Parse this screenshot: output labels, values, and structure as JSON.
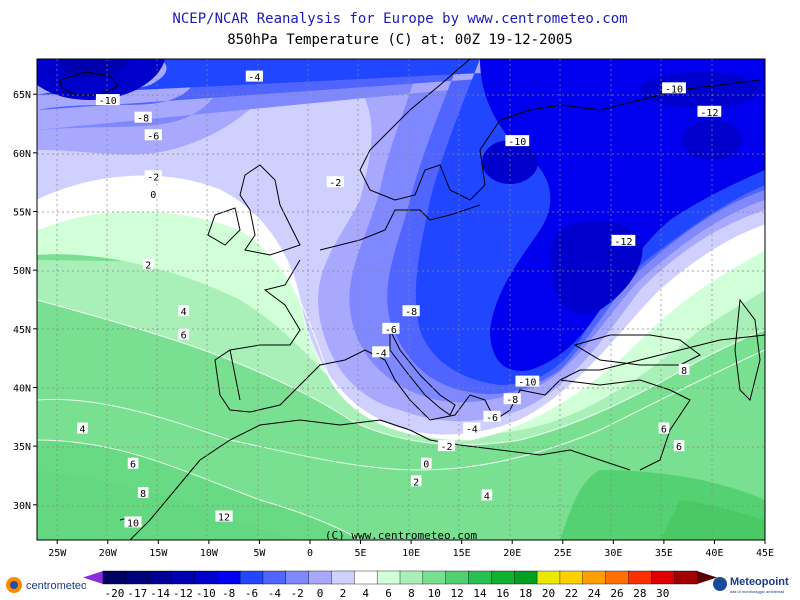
{
  "title": "NCEP/NCAR Reanalysis for Europe by www.centrometeo.com",
  "subtitle": "850hPa Temperature (C) at: 00Z 19-12-2005",
  "copyright": "(C) www.centrometeo.com",
  "lon_labels": [
    "25W",
    "20W",
    "15W",
    "10W",
    "5W",
    "0",
    "5E",
    "10E",
    "15E",
    "20E",
    "25E",
    "30E",
    "35E",
    "40E",
    "45E"
  ],
  "lat_labels": [
    "65N",
    "60N",
    "55N",
    "50N",
    "45N",
    "40N",
    "35N",
    "30N"
  ],
  "colorbar": {
    "labels": [
      "-20",
      "-17",
      "-14",
      "-12",
      "-10",
      "-8",
      "-6",
      "-4",
      "-2",
      "0",
      "2",
      "4",
      "6",
      "8",
      "10",
      "12",
      "14",
      "16",
      "18",
      "20",
      "22",
      "24",
      "26",
      "28",
      "30"
    ],
    "colors": [
      "#000060",
      "#00007a",
      "#000095",
      "#0000b0",
      "#0000cc",
      "#0000ee",
      "#2046ff",
      "#5064ff",
      "#8088ff",
      "#a8a8ff",
      "#d0d0ff",
      "#ffffff",
      "#d0ffd8",
      "#a8f0b8",
      "#78e090",
      "#50d070",
      "#28c050",
      "#10b030",
      "#00a020",
      "#e8e800",
      "#ffd000",
      "#ffa000",
      "#ff7000",
      "#ff3000",
      "#e00000",
      "#a00000"
    ]
  },
  "contour_labels": [
    {
      "text": "-4",
      "lon": -5.5,
      "lat": 66.5
    },
    {
      "text": "-10",
      "lon": -20,
      "lat": 64.5
    },
    {
      "text": "-8",
      "lon": -16.5,
      "lat": 63
    },
    {
      "text": "-6",
      "lon": -15.5,
      "lat": 61.5
    },
    {
      "text": "-2",
      "lon": -15.5,
      "lat": 58
    },
    {
      "text": "0",
      "lon": -15.5,
      "lat": 56.5
    },
    {
      "text": "-2",
      "lon": 2.5,
      "lat": 57.5
    },
    {
      "text": "2",
      "lon": -16,
      "lat": 50.5
    },
    {
      "text": "4",
      "lon": -12.5,
      "lat": 46.5
    },
    {
      "text": "6",
      "lon": -12.5,
      "lat": 44.5
    },
    {
      "text": "4",
      "lon": -22.5,
      "lat": 36.5
    },
    {
      "text": "6",
      "lon": -17.5,
      "lat": 33.5
    },
    {
      "text": "8",
      "lon": -16.5,
      "lat": 31
    },
    {
      "text": "10",
      "lon": -17.5,
      "lat": 28.5
    },
    {
      "text": "12",
      "lon": -8.5,
      "lat": 29
    },
    {
      "text": "-10",
      "lon": 20.5,
      "lat": 61
    },
    {
      "text": "-10",
      "lon": 36,
      "lat": 65.5
    },
    {
      "text": "-12",
      "lon": 39.5,
      "lat": 63.5
    },
    {
      "text": "-12",
      "lon": 31,
      "lat": 52.5
    },
    {
      "text": "-8",
      "lon": 10,
      "lat": 46.5
    },
    {
      "text": "-6",
      "lon": 8,
      "lat": 45
    },
    {
      "text": "-4",
      "lon": 7,
      "lat": 43
    },
    {
      "text": "-10",
      "lon": 21.5,
      "lat": 40.5
    },
    {
      "text": "-8",
      "lon": 20,
      "lat": 39
    },
    {
      "text": "-6",
      "lon": 18,
      "lat": 37.5
    },
    {
      "text": "-4",
      "lon": 16,
      "lat": 36.5
    },
    {
      "text": "-2",
      "lon": 13.5,
      "lat": 35
    },
    {
      "text": "0",
      "lon": 11.5,
      "lat": 33.5
    },
    {
      "text": "2",
      "lon": 10.5,
      "lat": 32
    },
    {
      "text": "4",
      "lon": 17.5,
      "lat": 30.8
    },
    {
      "text": "6",
      "lon": 36.5,
      "lat": 35
    },
    {
      "text": "6",
      "lon": 35,
      "lat": 36.5
    },
    {
      "text": "8",
      "lon": 37,
      "lat": 41.5
    }
  ],
  "logos": {
    "left": "centrometeo",
    "right": "Meteopoint",
    "right_tagline": "dati di monitoraggio ambientali"
  }
}
